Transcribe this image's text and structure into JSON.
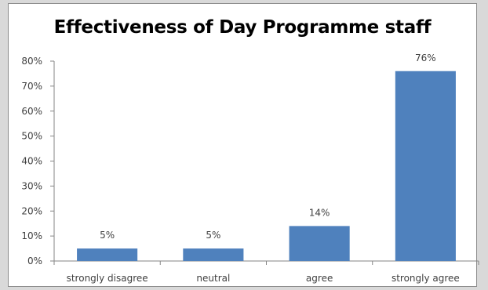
{
  "chart_data": {
    "type": "bar",
    "title": "Effectiveness of Day Programme staff",
    "categories": [
      "strongly disagree",
      "neutral",
      "agree",
      "strongly agree"
    ],
    "values": [
      5,
      5,
      14,
      76
    ],
    "data_labels": [
      "5%",
      "5%",
      "14%",
      "76%"
    ],
    "ylim": [
      0,
      80
    ],
    "yticks": [
      0,
      10,
      20,
      30,
      40,
      50,
      60,
      70,
      80
    ],
    "ytick_labels": [
      "0%",
      "10%",
      "20%",
      "30%",
      "40%",
      "50%",
      "60%",
      "70%",
      "80%"
    ],
    "xlabel": "",
    "ylabel": "",
    "grid": false,
    "legend": "none",
    "bar_color": "#4f81bd"
  }
}
